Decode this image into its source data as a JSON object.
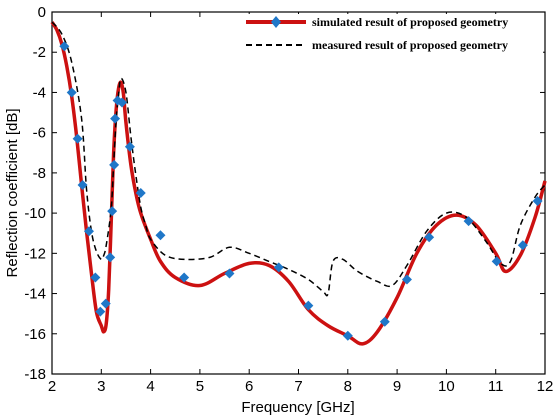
{
  "chart_data": {
    "type": "line",
    "title": "",
    "xlabel": "Frequency [GHz]",
    "ylabel": "Reflection coefficient [dB]",
    "xlim": [
      2,
      12
    ],
    "ylim": [
      -18,
      0
    ],
    "xticks": [
      "2",
      "3",
      "4",
      "5",
      "6",
      "7",
      "8",
      "9",
      "10",
      "11",
      "12"
    ],
    "yticks": [
      "0",
      "-2",
      "-4",
      "-6",
      "-8",
      "-10",
      "-12",
      "-14",
      "-16",
      "-18"
    ],
    "grid": false,
    "legend_position": "top-right",
    "series": [
      {
        "name": "simulated result of proposed geometry",
        "color": "#cc1111",
        "style": "solid-with-diamond-markers",
        "marker_color": "#1f77c8",
        "x": [
          2.0,
          2.1,
          2.2,
          2.3,
          2.4,
          2.5,
          2.6,
          2.7,
          2.8,
          2.9,
          3.0,
          3.05,
          3.1,
          3.15,
          3.2,
          3.25,
          3.3,
          3.35,
          3.4,
          3.45,
          3.5,
          3.6,
          3.7,
          3.8,
          4.0,
          4.2,
          4.5,
          5.0,
          5.5,
          6.0,
          6.4,
          6.8,
          7.2,
          7.6,
          8.0,
          8.3,
          8.6,
          9.0,
          9.4,
          9.8,
          10.2,
          10.6,
          11.0,
          11.2,
          11.5,
          11.8,
          12.0
        ],
        "y": [
          -0.5,
          -0.9,
          -1.6,
          -2.7,
          -4.2,
          -6.2,
          -8.6,
          -10.9,
          -13.0,
          -14.9,
          -15.6,
          -15.9,
          -15.5,
          -13.8,
          -10.5,
          -7.0,
          -4.9,
          -3.8,
          -3.5,
          -4.1,
          -5.5,
          -7.6,
          -9.0,
          -10.0,
          -11.3,
          -12.4,
          -13.2,
          -13.6,
          -13.0,
          -12.5,
          -12.6,
          -13.4,
          -14.8,
          -15.6,
          -16.1,
          -16.5,
          -15.9,
          -14.2,
          -12.0,
          -10.6,
          -10.1,
          -10.6,
          -12.0,
          -12.9,
          -12.1,
          -10.2,
          -8.4
        ]
      },
      {
        "name": "measured result of proposed geometry",
        "color": "#000000",
        "style": "dashed",
        "x": [
          2.0,
          2.2,
          2.4,
          2.6,
          2.7,
          2.8,
          2.9,
          3.0,
          3.05,
          3.1,
          3.2,
          3.25,
          3.3,
          3.35,
          3.4,
          3.5,
          3.6,
          3.7,
          3.8,
          3.9,
          4.0,
          4.3,
          4.7,
          5.2,
          5.6,
          6.0,
          6.4,
          6.8,
          7.2,
          7.5,
          7.6,
          7.7,
          7.9,
          8.2,
          8.6,
          8.9,
          9.2,
          9.6,
          10.0,
          10.4,
          10.8,
          11.1,
          11.3,
          11.5,
          11.8,
          12.0
        ],
        "y": [
          -0.5,
          -1.1,
          -2.5,
          -5.3,
          -8.8,
          -10.9,
          -11.9,
          -12.3,
          -12.1,
          -11.6,
          -9.8,
          -7.6,
          -5.4,
          -4.1,
          -3.3,
          -4.0,
          -6.2,
          -8.1,
          -9.7,
          -10.6,
          -11.3,
          -12.1,
          -12.3,
          -12.2,
          -11.7,
          -12.0,
          -12.4,
          -12.8,
          -13.3,
          -13.9,
          -14.0,
          -12.4,
          -12.3,
          -12.9,
          -13.4,
          -13.6,
          -12.6,
          -10.9,
          -10.0,
          -10.2,
          -11.4,
          -12.5,
          -12.4,
          -10.6,
          -9.2,
          -8.6
        ]
      }
    ],
    "marker_positions": {
      "x": [
        2.25,
        2.4,
        2.52,
        2.62,
        2.75,
        2.88,
        2.98,
        3.09,
        3.18,
        3.22,
        3.26,
        3.28,
        3.33,
        3.42,
        3.58,
        3.8,
        4.2,
        4.68,
        5.6,
        6.6,
        7.2,
        8.0,
        8.75,
        9.2,
        9.65,
        10.45,
        11.02,
        11.55,
        11.85
      ],
      "y": [
        -1.7,
        -4.0,
        -6.3,
        -8.6,
        -10.9,
        -13.2,
        -14.9,
        -14.5,
        -12.2,
        -9.9,
        -7.6,
        -5.3,
        -4.4,
        -4.5,
        -6.7,
        -9.0,
        -11.1,
        -13.2,
        -13.0,
        -12.7,
        -14.6,
        -16.1,
        -15.4,
        -13.3,
        -11.2,
        -10.4,
        -12.4,
        -11.6,
        -9.4
      ]
    }
  }
}
